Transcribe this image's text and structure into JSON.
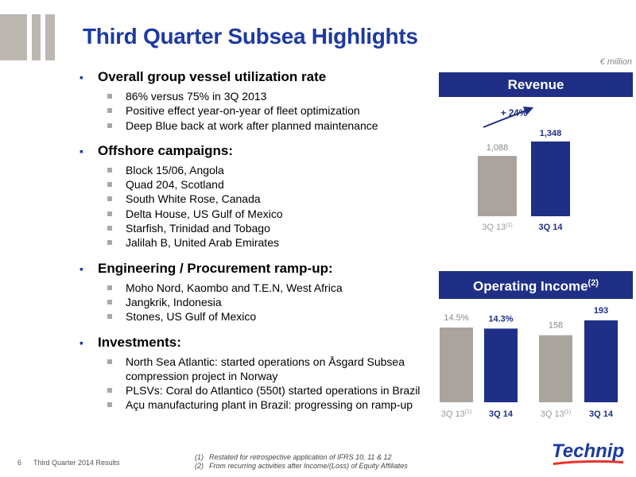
{
  "title": "Third Quarter Subsea Highlights",
  "unit_label": "€ million",
  "sections": [
    {
      "heading": "Overall group vessel utilization rate",
      "items": [
        "86% versus 75% in 3Q 2013",
        "Positive effect year-on-year of fleet optimization",
        "Deep Blue back at work after planned maintenance"
      ]
    },
    {
      "heading": "Offshore campaigns:",
      "items": [
        "Block 15/06, Angola",
        "Quad 204, Scotland",
        "South White Rose, Canada",
        "Delta House, US Gulf of Mexico",
        "Starfish, Trinidad and Tobago",
        "Jalilah B, United Arab Emirates"
      ]
    },
    {
      "heading": "Engineering / Procurement ramp-up:",
      "items": [
        "Moho Nord, Kaombo and T.E.N, West Africa",
        "Jangkrik, Indonesia",
        "Stones, US Gulf of Mexico"
      ]
    },
    {
      "heading": "Investments:",
      "items": [
        "North Sea Atlantic: started operations on Åsgard Subsea compression project in Norway",
        "PLSVs: Coral do Atlantico (550t) started operations in Brazil",
        "Açu manufacturing plant in Brazil: progressing on ramp-up"
      ]
    }
  ],
  "chart_data": [
    {
      "type": "bar",
      "title": "Revenue",
      "categories": [
        "3Q 13",
        "3Q 14"
      ],
      "category_notes": [
        "(1)",
        ""
      ],
      "values": [
        1088,
        1348
      ],
      "value_labels": [
        "1,088",
        "1,348"
      ],
      "annotation": "+ 24%",
      "colors": [
        "#aaa49f",
        "#1f2f85"
      ]
    },
    {
      "type": "bar",
      "title": "Operating Income",
      "title_note": "(2)",
      "groups": [
        {
          "categories": [
            "3Q 13",
            "3Q 14"
          ],
          "category_notes": [
            "(1)",
            ""
          ],
          "values": [
            14.5,
            14.3
          ],
          "value_labels": [
            "14.5%",
            "14.3%"
          ]
        },
        {
          "categories": [
            "3Q 13",
            "3Q 14"
          ],
          "category_notes": [
            "(1)",
            ""
          ],
          "values": [
            158,
            193
          ],
          "value_labels": [
            "158",
            "193"
          ]
        }
      ],
      "colors": [
        "#aaa49f",
        "#1f2f85"
      ]
    }
  ],
  "footer": {
    "page": "6",
    "text": "Third Quarter 2014 Results"
  },
  "notes": [
    {
      "num": "(1)",
      "text": "Restated for retrospective application of IFRS 10, 11 & 12"
    },
    {
      "num": "(2)",
      "text": "From recurring activities after Income/(Loss) of Equity Affiliates"
    }
  ],
  "brand": "Technip",
  "colors": {
    "title": "#1d3aa0",
    "header_bg": "#1f2f85",
    "bar_prior": "#aaa49f",
    "bar_current": "#1f2f85",
    "arrow": "#1f2f85",
    "logo_bars": "#bdb7b2"
  }
}
